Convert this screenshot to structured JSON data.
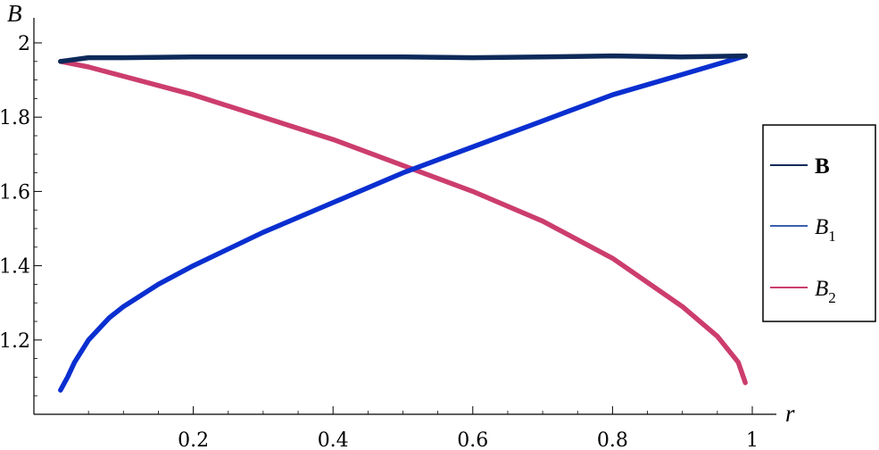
{
  "chart_data": {
    "type": "line",
    "xlabel": "r",
    "ylabel": "B",
    "xlim": [
      0,
      1
    ],
    "ylim": [
      1.0,
      2.0
    ],
    "x_ticks": [
      {
        "value": 0.2,
        "label": "0.2"
      },
      {
        "value": 0.4,
        "label": "0.4"
      },
      {
        "value": 0.6,
        "label": "0.6"
      },
      {
        "value": 0.8,
        "label": "0.8"
      },
      {
        "value": 1.0,
        "label": "1"
      }
    ],
    "y_ticks": [
      {
        "value": 1.2,
        "label": "1.2"
      },
      {
        "value": 1.4,
        "label": "1.4"
      },
      {
        "value": 1.6,
        "label": "1.6"
      },
      {
        "value": 1.8,
        "label": "1.8"
      },
      {
        "value": 2.0,
        "label": "2"
      }
    ],
    "grid": false,
    "legend_position": "right",
    "series": [
      {
        "name": "B",
        "color": "#0e2a5a",
        "x": [
          0.01,
          0.05,
          0.1,
          0.2,
          0.3,
          0.4,
          0.5,
          0.6,
          0.7,
          0.8,
          0.9,
          0.99
        ],
        "y": [
          1.95,
          1.96,
          1.96,
          1.962,
          1.962,
          1.962,
          1.962,
          1.96,
          1.962,
          1.965,
          1.962,
          1.965
        ]
      },
      {
        "name": "B1",
        "color": "#0a2fd0",
        "x": [
          0.01,
          0.02,
          0.03,
          0.05,
          0.08,
          0.1,
          0.15,
          0.2,
          0.3,
          0.4,
          0.5,
          0.6,
          0.7,
          0.8,
          0.9,
          0.99
        ],
        "y": [
          1.065,
          1.1,
          1.14,
          1.2,
          1.26,
          1.29,
          1.35,
          1.4,
          1.49,
          1.57,
          1.65,
          1.72,
          1.79,
          1.86,
          1.915,
          1.965
        ]
      },
      {
        "name": "B2",
        "color": "#cc3d6e",
        "x": [
          0.01,
          0.05,
          0.1,
          0.2,
          0.3,
          0.4,
          0.5,
          0.6,
          0.7,
          0.8,
          0.9,
          0.95,
          0.98,
          0.99
        ],
        "y": [
          1.95,
          1.935,
          1.91,
          1.86,
          1.8,
          1.74,
          1.67,
          1.6,
          1.52,
          1.42,
          1.29,
          1.21,
          1.14,
          1.085
        ]
      }
    ]
  },
  "legend": {
    "items": [
      {
        "base": "B",
        "sub": "",
        "color": "#0e2a5a"
      },
      {
        "base": "B",
        "sub": "1",
        "color": "#3a5fb0"
      },
      {
        "base": "B",
        "sub": "2",
        "color": "#cc3d6e"
      }
    ]
  }
}
